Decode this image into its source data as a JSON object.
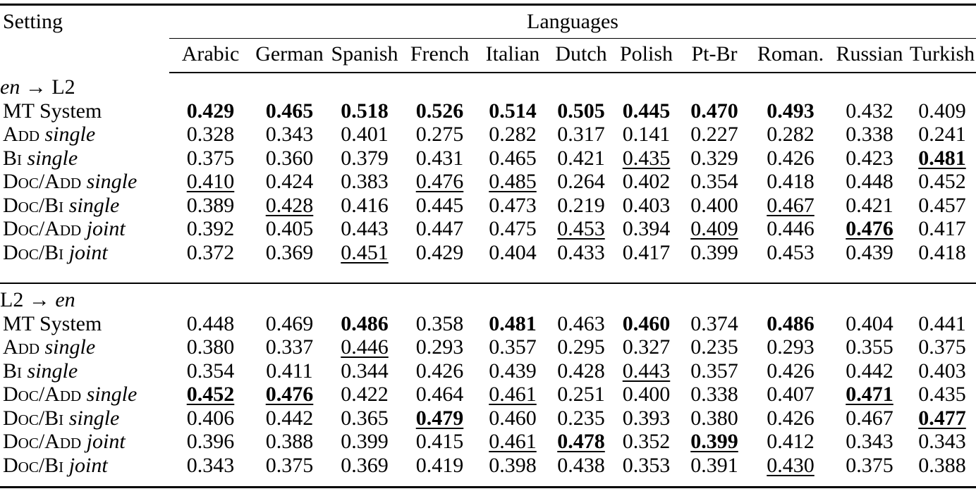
{
  "page": {
    "background": "#ffffff",
    "text_color": "#000000"
  },
  "table": {
    "setting_header": "Setting",
    "languages_header": "Languages",
    "columns": [
      "Arabic",
      "German",
      "Spanish",
      "French",
      "Italian",
      "Dutch",
      "Polish",
      "Pt-Br",
      "Roman.",
      "Russian",
      "Turkish"
    ],
    "sections": [
      {
        "id": "en-to-l2",
        "label_parts": [
          {
            "t": "en",
            "it": true
          },
          {
            "t": " → L2"
          }
        ],
        "rows": [
          {
            "name": "mt-system",
            "label_parts": [
              {
                "t": "MT System"
              }
            ],
            "cells": [
              {
                "v": "0.429",
                "b": true
              },
              {
                "v": "0.465",
                "b": true
              },
              {
                "v": "0.518",
                "b": true
              },
              {
                "v": "0.526",
                "b": true
              },
              {
                "v": "0.514",
                "b": true
              },
              {
                "v": "0.505",
                "b": true
              },
              {
                "v": "0.445",
                "b": true
              },
              {
                "v": "0.470",
                "b": true
              },
              {
                "v": "0.493",
                "b": true
              },
              {
                "v": "0.432"
              },
              {
                "v": "0.409"
              }
            ]
          },
          {
            "name": "add-single",
            "label_parts": [
              {
                "t": "Add",
                "sc": true
              },
              {
                "t": " "
              },
              {
                "t": "single",
                "it": true
              }
            ],
            "cells": [
              {
                "v": "0.328"
              },
              {
                "v": "0.343"
              },
              {
                "v": "0.401"
              },
              {
                "v": "0.275"
              },
              {
                "v": "0.282"
              },
              {
                "v": "0.317"
              },
              {
                "v": "0.141"
              },
              {
                "v": "0.227"
              },
              {
                "v": "0.282"
              },
              {
                "v": "0.338"
              },
              {
                "v": "0.241"
              }
            ]
          },
          {
            "name": "bi-single",
            "label_parts": [
              {
                "t": "Bi",
                "sc": true
              },
              {
                "t": " "
              },
              {
                "t": "single",
                "it": true
              }
            ],
            "cells": [
              {
                "v": "0.375"
              },
              {
                "v": "0.360"
              },
              {
                "v": "0.379"
              },
              {
                "v": "0.431"
              },
              {
                "v": "0.465"
              },
              {
                "v": "0.421"
              },
              {
                "v": "0.435",
                "u": true
              },
              {
                "v": "0.329"
              },
              {
                "v": "0.426"
              },
              {
                "v": "0.423"
              },
              {
                "v": "0.481",
                "b": true,
                "u": true
              }
            ]
          },
          {
            "name": "doc-add-single",
            "label_parts": [
              {
                "t": "Doc/Add",
                "sc": true
              },
              {
                "t": " "
              },
              {
                "t": "single",
                "it": true
              }
            ],
            "cells": [
              {
                "v": "0.410",
                "u": true
              },
              {
                "v": "0.424"
              },
              {
                "v": "0.383"
              },
              {
                "v": "0.476",
                "u": true
              },
              {
                "v": "0.485",
                "u": true
              },
              {
                "v": "0.264"
              },
              {
                "v": "0.402"
              },
              {
                "v": "0.354"
              },
              {
                "v": "0.418"
              },
              {
                "v": "0.448"
              },
              {
                "v": "0.452"
              }
            ]
          },
          {
            "name": "doc-bi-single",
            "label_parts": [
              {
                "t": "Doc/Bi",
                "sc": true
              },
              {
                "t": " "
              },
              {
                "t": "single",
                "it": true
              }
            ],
            "cells": [
              {
                "v": "0.389"
              },
              {
                "v": "0.428",
                "u": true
              },
              {
                "v": "0.416"
              },
              {
                "v": "0.445"
              },
              {
                "v": "0.473"
              },
              {
                "v": "0.219"
              },
              {
                "v": "0.403"
              },
              {
                "v": "0.400"
              },
              {
                "v": "0.467",
                "u": true
              },
              {
                "v": "0.421"
              },
              {
                "v": "0.457"
              }
            ]
          },
          {
            "name": "doc-add-joint",
            "label_parts": [
              {
                "t": "Doc/Add",
                "sc": true
              },
              {
                "t": " "
              },
              {
                "t": "joint",
                "it": true
              }
            ],
            "cells": [
              {
                "v": "0.392"
              },
              {
                "v": "0.405"
              },
              {
                "v": "0.443"
              },
              {
                "v": "0.447"
              },
              {
                "v": "0.475"
              },
              {
                "v": "0.453",
                "u": true
              },
              {
                "v": "0.394"
              },
              {
                "v": "0.409",
                "u": true
              },
              {
                "v": "0.446"
              },
              {
                "v": "0.476",
                "b": true,
                "u": true
              },
              {
                "v": "0.417"
              }
            ]
          },
          {
            "name": "doc-bi-joint",
            "label_parts": [
              {
                "t": "Doc/Bi",
                "sc": true
              },
              {
                "t": " "
              },
              {
                "t": "joint",
                "it": true
              }
            ],
            "cells": [
              {
                "v": "0.372"
              },
              {
                "v": "0.369"
              },
              {
                "v": "0.451",
                "u": true
              },
              {
                "v": "0.429"
              },
              {
                "v": "0.404"
              },
              {
                "v": "0.433"
              },
              {
                "v": "0.417"
              },
              {
                "v": "0.399"
              },
              {
                "v": "0.453"
              },
              {
                "v": "0.439"
              },
              {
                "v": "0.418"
              }
            ]
          }
        ]
      },
      {
        "id": "l2-to-en",
        "label_parts": [
          {
            "t": "L2 → "
          },
          {
            "t": "en",
            "it": true
          }
        ],
        "rows": [
          {
            "name": "mt-system",
            "label_parts": [
              {
                "t": "MT System"
              }
            ],
            "cells": [
              {
                "v": "0.448"
              },
              {
                "v": "0.469"
              },
              {
                "v": "0.486",
                "b": true
              },
              {
                "v": "0.358"
              },
              {
                "v": "0.481",
                "b": true
              },
              {
                "v": "0.463"
              },
              {
                "v": "0.460",
                "b": true
              },
              {
                "v": "0.374"
              },
              {
                "v": "0.486",
                "b": true
              },
              {
                "v": "0.404"
              },
              {
                "v": "0.441"
              }
            ]
          },
          {
            "name": "add-single",
            "label_parts": [
              {
                "t": "Add",
                "sc": true
              },
              {
                "t": " "
              },
              {
                "t": "single",
                "it": true
              }
            ],
            "cells": [
              {
                "v": "0.380"
              },
              {
                "v": "0.337"
              },
              {
                "v": "0.446",
                "u": true
              },
              {
                "v": "0.293"
              },
              {
                "v": "0.357"
              },
              {
                "v": "0.295"
              },
              {
                "v": "0.327"
              },
              {
                "v": "0.235"
              },
              {
                "v": "0.293"
              },
              {
                "v": "0.355"
              },
              {
                "v": "0.375"
              }
            ]
          },
          {
            "name": "bi-single",
            "label_parts": [
              {
                "t": "Bi",
                "sc": true
              },
              {
                "t": " "
              },
              {
                "t": "single",
                "it": true
              }
            ],
            "cells": [
              {
                "v": "0.354"
              },
              {
                "v": "0.411"
              },
              {
                "v": "0.344"
              },
              {
                "v": "0.426"
              },
              {
                "v": "0.439"
              },
              {
                "v": "0.428"
              },
              {
                "v": "0.443",
                "u": true
              },
              {
                "v": "0.357"
              },
              {
                "v": "0.426"
              },
              {
                "v": "0.442"
              },
              {
                "v": "0.403"
              }
            ]
          },
          {
            "name": "doc-add-single",
            "label_parts": [
              {
                "t": "Doc/Add",
                "sc": true
              },
              {
                "t": " "
              },
              {
                "t": "single",
                "it": true
              }
            ],
            "cells": [
              {
                "v": "0.452",
                "b": true,
                "u": true
              },
              {
                "v": "0.476",
                "b": true,
                "u": true
              },
              {
                "v": "0.422"
              },
              {
                "v": "0.464"
              },
              {
                "v": "0.461",
                "u": true
              },
              {
                "v": "0.251"
              },
              {
                "v": "0.400"
              },
              {
                "v": "0.338"
              },
              {
                "v": "0.407"
              },
              {
                "v": "0.471",
                "b": true,
                "u": true
              },
              {
                "v": "0.435"
              }
            ]
          },
          {
            "name": "doc-bi-single",
            "label_parts": [
              {
                "t": "Doc/Bi",
                "sc": true
              },
              {
                "t": " "
              },
              {
                "t": "single",
                "it": true
              }
            ],
            "cells": [
              {
                "v": "0.406"
              },
              {
                "v": "0.442"
              },
              {
                "v": "0.365"
              },
              {
                "v": "0.479",
                "b": true,
                "u": true
              },
              {
                "v": "0.460"
              },
              {
                "v": "0.235"
              },
              {
                "v": "0.393"
              },
              {
                "v": "0.380"
              },
              {
                "v": "0.426"
              },
              {
                "v": "0.467"
              },
              {
                "v": "0.477",
                "b": true,
                "u": true
              }
            ]
          },
          {
            "name": "doc-add-joint",
            "label_parts": [
              {
                "t": "Doc/Add",
                "sc": true
              },
              {
                "t": " "
              },
              {
                "t": "joint",
                "it": true
              }
            ],
            "cells": [
              {
                "v": "0.396"
              },
              {
                "v": "0.388"
              },
              {
                "v": "0.399"
              },
              {
                "v": "0.415"
              },
              {
                "v": "0.461",
                "u": true
              },
              {
                "v": "0.478",
                "b": true,
                "u": true
              },
              {
                "v": "0.352"
              },
              {
                "v": "0.399",
                "b": true,
                "u": true
              },
              {
                "v": "0.412"
              },
              {
                "v": "0.343"
              },
              {
                "v": "0.343"
              }
            ]
          },
          {
            "name": "doc-bi-joint",
            "label_parts": [
              {
                "t": "Doc/Bi",
                "sc": true
              },
              {
                "t": " "
              },
              {
                "t": "joint",
                "it": true
              }
            ],
            "cells": [
              {
                "v": "0.343"
              },
              {
                "v": "0.375"
              },
              {
                "v": "0.369"
              },
              {
                "v": "0.419"
              },
              {
                "v": "0.398"
              },
              {
                "v": "0.438"
              },
              {
                "v": "0.353"
              },
              {
                "v": "0.391"
              },
              {
                "v": "0.430",
                "u": true
              },
              {
                "v": "0.375"
              },
              {
                "v": "0.388"
              }
            ]
          }
        ]
      }
    ]
  }
}
